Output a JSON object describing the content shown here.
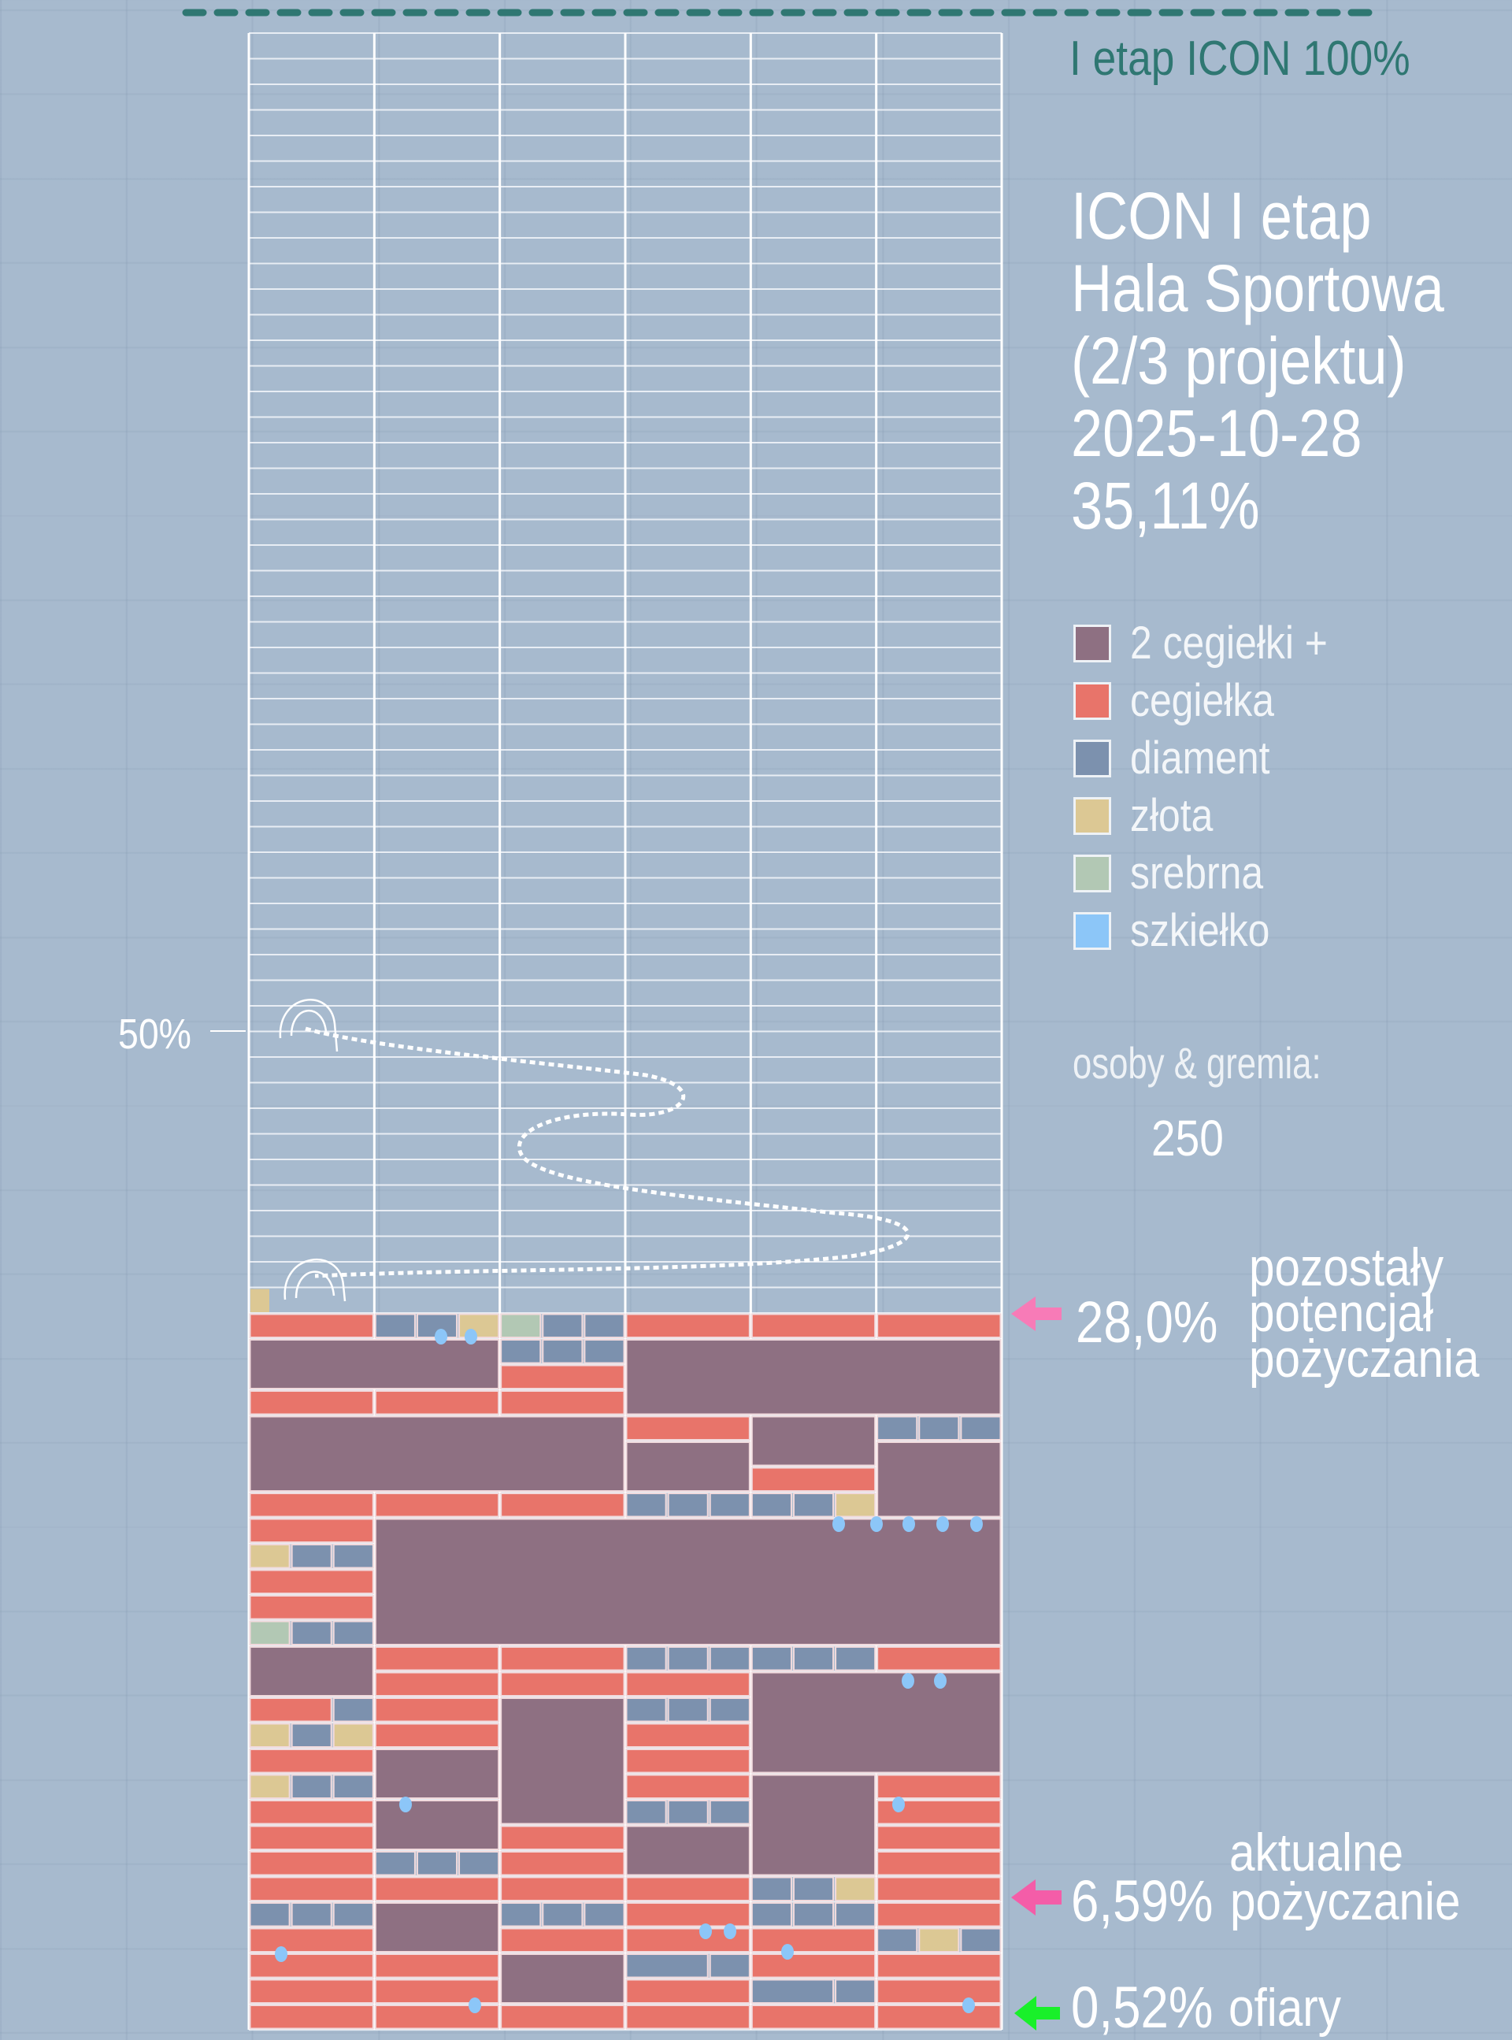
{
  "header": {
    "target_label": "I etap ICON 100%",
    "title_lines": [
      "ICON I etap",
      "Hala Sportowa",
      "(2/3 projektu)",
      "2025-10-28",
      "35,11%"
    ]
  },
  "people": {
    "label": "osoby & gremia:",
    "count": "250"
  },
  "marker_50": "50%",
  "annotations": {
    "remaining_value": "28,0%",
    "remaining_lines": [
      "pozostały",
      "potencjał",
      "pożyczania"
    ],
    "current_value": "6,59%",
    "current_lines": [
      "aktualne",
      "pożyczanie"
    ],
    "offerings_value": "0,52%",
    "offerings_label": "ofiary"
  },
  "colors": {
    "background": "#a7bace",
    "target_line": "#2f7772",
    "arrow_remaining": "#f77bb7",
    "arrow_current": "#f45da8",
    "arrow_offerings": "#19f02a"
  },
  "chart_data": {
    "type": "bar",
    "title": "ICON I etap Hala Sportowa (2/3 projektu)",
    "date": "2025-10-28",
    "progress_percent": 35.11,
    "ylim": [
      0,
      100
    ],
    "marker_percent": 50,
    "remaining_borrowing_potential_percent": 28.0,
    "current_borrowing_percent": 6.59,
    "offerings_percent": 0.52,
    "people_and_groups": 250,
    "legend": [
      {
        "key": "D",
        "label": "2 cegiełki +",
        "color": "#8e7082"
      },
      {
        "key": "C",
        "label": "cegiełka",
        "color": "#e8746a"
      },
      {
        "key": "M",
        "label": "diament",
        "color": "#7c91ae"
      },
      {
        "key": "Z",
        "label": "złota",
        "color": "#dcc894"
      },
      {
        "key": "S",
        "label": "srebrna",
        "color": "#b2c8b4"
      },
      {
        "key": "G",
        "label": "szkiełko",
        "color": "#8cc6f8"
      }
    ]
  }
}
